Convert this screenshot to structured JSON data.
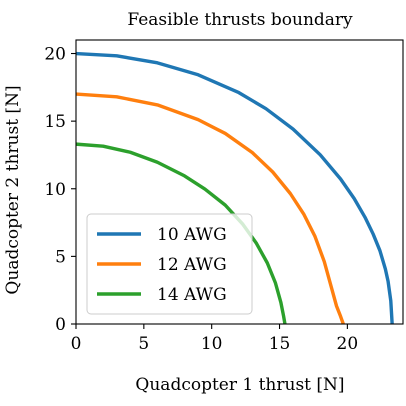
{
  "chart_data": {
    "type": "line",
    "title": "Feasible thrusts boundary",
    "xlabel": "Quadcopter 1 thrust [N]",
    "ylabel": "Quadcopter 2 thrust [N]",
    "xlim": [
      0,
      24.1
    ],
    "ylim": [
      0,
      21
    ],
    "xticks": [
      0,
      5,
      10,
      15,
      20
    ],
    "yticks": [
      0,
      5,
      10,
      15,
      20
    ],
    "grid": false,
    "legend_position": "lower-left",
    "series": [
      {
        "name": "10 AWG",
        "color": "#1f77b4",
        "x": [
          0,
          3,
          6,
          9,
          12,
          14,
          16,
          18,
          19.5,
          20.5,
          21.3,
          21.9,
          22.4,
          22.8,
          23.0,
          23.2,
          23.3
        ],
        "y": [
          20.0,
          19.83,
          19.31,
          18.43,
          17.11,
          15.92,
          14.41,
          12.51,
          10.72,
          9.28,
          7.89,
          6.65,
          5.42,
          4.07,
          3.16,
          1.71,
          0
        ]
      },
      {
        "name": "12 AWG",
        "color": "#ff7f0e",
        "x": [
          0,
          3,
          6,
          9,
          11,
          13,
          14.5,
          15.8,
          16.8,
          17.6,
          18.3,
          18.8,
          19.2,
          19.5,
          19.7
        ],
        "y": [
          17.0,
          16.8,
          16.2,
          15.11,
          14.09,
          12.67,
          11.24,
          9.64,
          8.1,
          6.51,
          4.61,
          2.79,
          1.33,
          0.56,
          0
        ]
      },
      {
        "name": "14 AWG",
        "color": "#2ca02c",
        "x": [
          0,
          2,
          4,
          6,
          8,
          9.5,
          11,
          12.3,
          13.3,
          14.1,
          14.7,
          15.1,
          15.3,
          15.4
        ],
        "y": [
          13.3,
          13.15,
          12.7,
          11.96,
          10.95,
          9.98,
          8.79,
          7.37,
          5.96,
          4.51,
          3.03,
          1.59,
          0.58,
          0
        ]
      }
    ]
  }
}
